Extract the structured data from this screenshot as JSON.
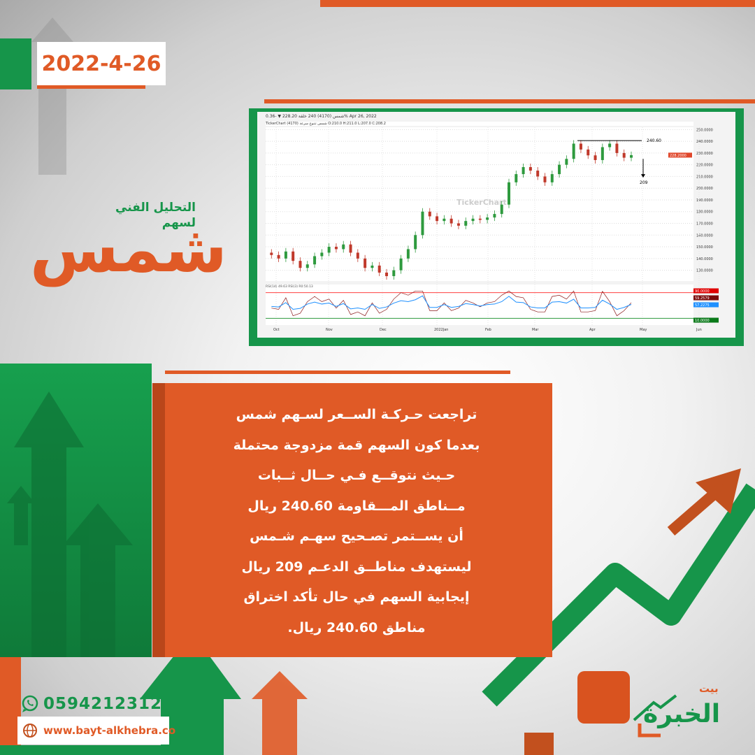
{
  "header": {
    "date": "2022-4-26"
  },
  "title": {
    "subtitle": "التحليل الفني لسهم",
    "stock_name": "شمس"
  },
  "chart": {
    "symbol_line": "شمس (4170)  240 خلقة  228.20  ▼ -0.36%  Apr 26, 2022",
    "ohlc_line": "TickerChart  شمس تتنوع سرعة (4170) O:210.0  H:211.0  L:207.0  C:208.2",
    "watermark": "TickerChart",
    "resistance_label": "240.60",
    "target_label": "209",
    "last_price_label": "228.2000",
    "rsi_legend": "RSI(14) 49.63  RSI(3)  R0:50.13",
    "rsi_badges": [
      "90.0000",
      "59.2579",
      "57.2275",
      "10.0000"
    ],
    "colors": {
      "up": "#2e9a3e",
      "down": "#c0392b",
      "rsi14": "#1e90ff",
      "rsi3": "#8b1a1a",
      "upper": "#ff4040",
      "lower": "#2e9a3e"
    }
  },
  "chart_data": {
    "type": "candlestick",
    "x_ticks": [
      "Oct",
      "Nov",
      "Dec",
      "2022Jan",
      "Feb",
      "Mar",
      "Apr",
      "May",
      "Jun"
    ],
    "y_ticks": [
      "250.0000",
      "240.0000",
      "230.0000",
      "220.0000",
      "210.0000",
      "200.0000",
      "190.0000",
      "180.0000",
      "170.0000",
      "160.0000",
      "150.0000",
      "140.0000",
      "130.0000"
    ],
    "ylim": [
      122,
      252
    ],
    "close": [
      145,
      143,
      140,
      146,
      138,
      132,
      135,
      142,
      145,
      150,
      148,
      152,
      145,
      140,
      132,
      134,
      128,
      125,
      130,
      140,
      148,
      160,
      180,
      176,
      172,
      174,
      170,
      168,
      172,
      174,
      173,
      175,
      178,
      186,
      205,
      212,
      218,
      215,
      210,
      205,
      212,
      220,
      225,
      238,
      233,
      228,
      224,
      235,
      238,
      230,
      226,
      228.2
    ],
    "resistance": 240.6,
    "support_target": 209,
    "last": 228.2,
    "rsi_levels": [
      90,
      10
    ]
  },
  "body": {
    "lines": [
      "تراجعت حـركـة الســعر لسـهم شمس",
      "بعدما كون السهم قمة مزدوجة محتملة",
      "حـيث نتوقــع فـي حــال ثــبات",
      "مــناطق المـــقاومة 240.60 ريال",
      "أن يســتمر تصـحيح سهـم شـمس",
      "ليستهدف مناطــق الدعـم 209 ريال",
      "إيجابية السهم في حال تأكد اختراق",
      "مناطق 240.60 ريال."
    ]
  },
  "footer": {
    "phone": "0594212312",
    "website": "www.bayt-alkhebra.co"
  },
  "logo": {
    "name": "الخبرة",
    "prefix": "بيت"
  }
}
